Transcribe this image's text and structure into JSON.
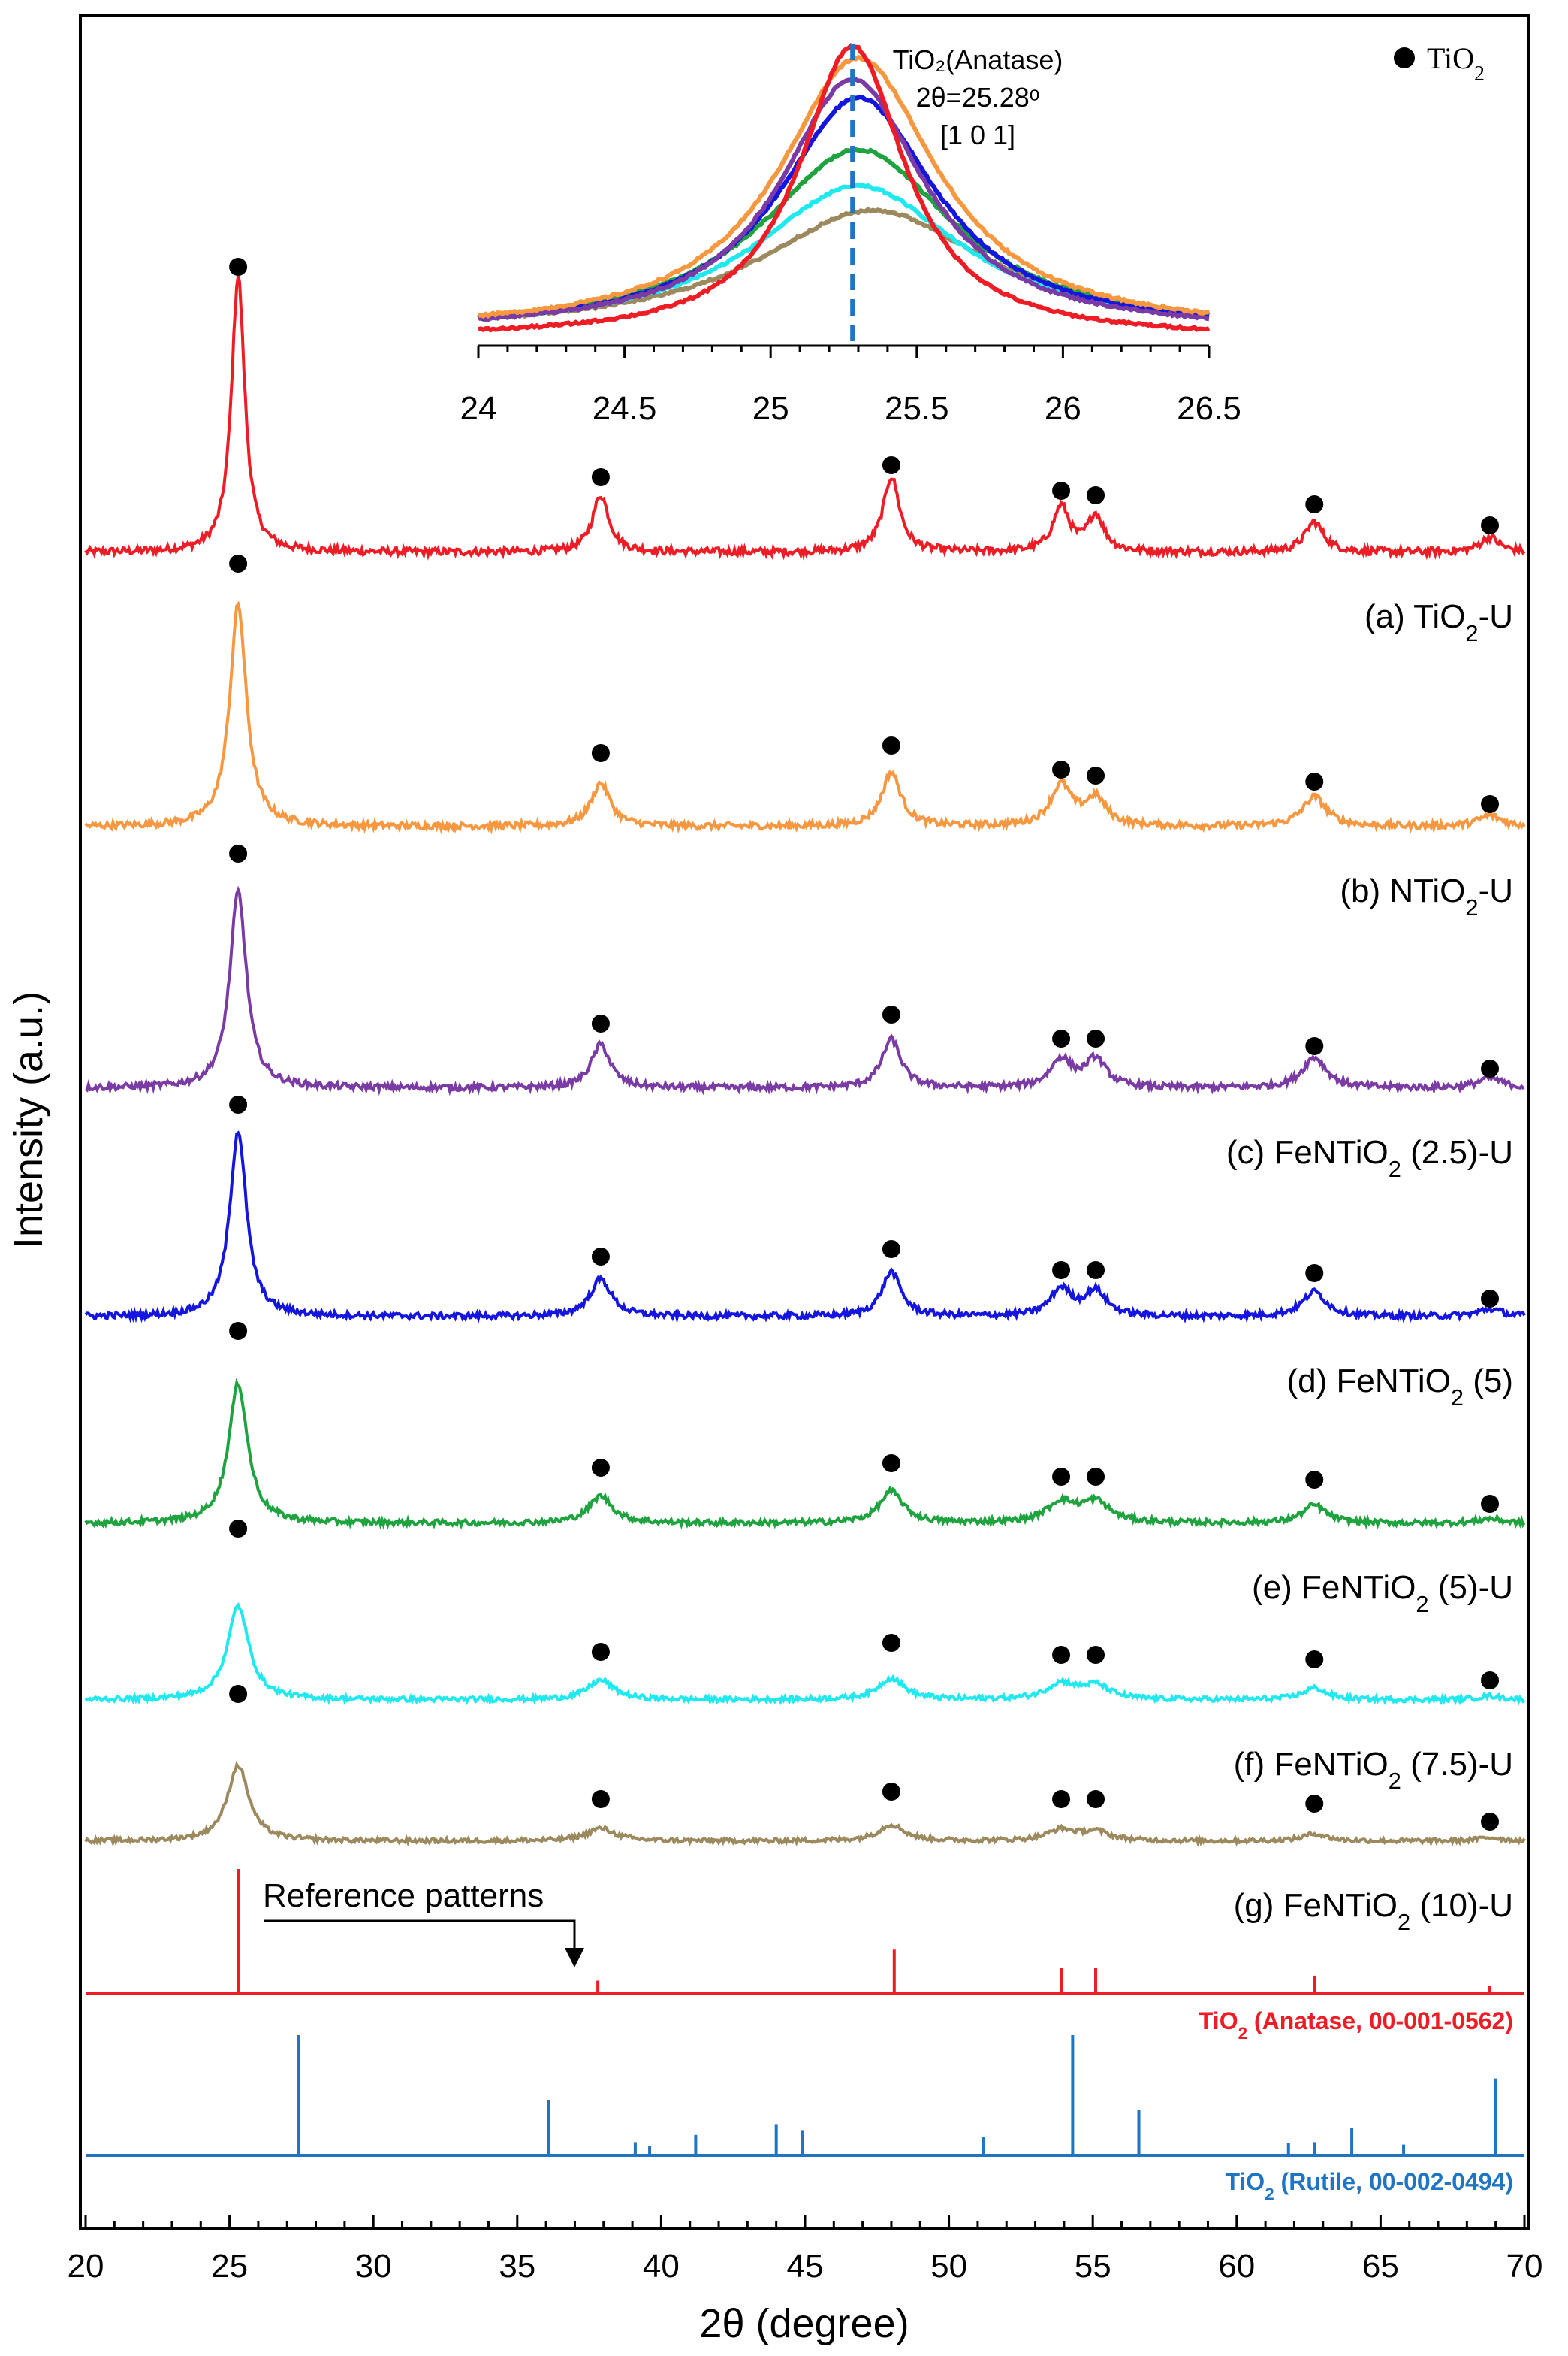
{
  "chart_data": {
    "type": "line",
    "title": "",
    "xlabel": "2θ (degree)",
    "ylabel": "Intensity (a.u.)",
    "xlim": [
      20,
      70
    ],
    "x_ticks": [
      20,
      25,
      30,
      35,
      40,
      45,
      50,
      55,
      60,
      65,
      70
    ],
    "y_ticks": "none",
    "grid": false,
    "legend": {
      "position": "top-right",
      "marker": "●",
      "label": "TiO",
      "sub": "2"
    },
    "peak_positions": [
      25.3,
      37.9,
      48.0,
      53.9,
      55.1,
      62.7,
      68.8
    ],
    "series": [
      {
        "name": "(a) TiO2-U",
        "label_parts": [
          "(a) TiO",
          "2",
          "-U"
        ],
        "color": "#ee1c25",
        "peak_heights": [
          0.92,
          0.19,
          0.25,
          0.15,
          0.12,
          0.1,
          0.05
        ],
        "peak_widths": [
          0.28,
          0.35,
          0.35,
          0.35,
          0.35,
          0.4,
          0.4
        ]
      },
      {
        "name": "(b) NTiO2-U",
        "label_parts": [
          "(b) NTiO",
          "2",
          "-U"
        ],
        "color": "#f7973f",
        "peak_heights": [
          0.82,
          0.16,
          0.2,
          0.15,
          0.1,
          0.11,
          0.04
        ],
        "peak_widths": [
          0.35,
          0.4,
          0.4,
          0.45,
          0.45,
          0.5,
          0.5
        ]
      },
      {
        "name": "(c) FeNTiO2 (2.5)-U",
        "label_parts": [
          "(c) FeNTiO",
          "2",
          " (2.5)-U"
        ],
        "color": "#7b3ba5",
        "peak_heights": [
          0.77,
          0.17,
          0.19,
          0.11,
          0.11,
          0.12,
          0.04
        ],
        "peak_widths": [
          0.35,
          0.4,
          0.4,
          0.45,
          0.45,
          0.5,
          0.5
        ]
      },
      {
        "name": "(d) FeNTiO2 (5)",
        "label_parts": [
          "(d) FeNTiO",
          "2",
          " (5)"
        ],
        "color": "#1515e0",
        "peak_heights": [
          0.75,
          0.15,
          0.18,
          0.11,
          0.1,
          0.1,
          0.03
        ],
        "peak_widths": [
          0.35,
          0.45,
          0.4,
          0.45,
          0.45,
          0.5,
          0.5
        ]
      },
      {
        "name": "(e) FeNTiO2 (5)-U",
        "label_parts": [
          "(e) FeNTiO",
          "2",
          " (5)-U"
        ],
        "color": "#1fa33e",
        "peak_heights": [
          0.62,
          0.12,
          0.14,
          0.09,
          0.09,
          0.08,
          0.02
        ],
        "peak_widths": [
          0.4,
          0.5,
          0.5,
          0.6,
          0.6,
          0.5,
          0.5
        ]
      },
      {
        "name": "(f) FeNTiO2 (7.5)-U",
        "label_parts": [
          "(f) FeNTiO",
          "2",
          " (7.5)-U"
        ],
        "color": "#1fe8ef",
        "peak_heights": [
          0.48,
          0.1,
          0.11,
          0.08,
          0.07,
          0.06,
          0.02
        ],
        "peak_widths": [
          0.45,
          0.55,
          0.55,
          0.6,
          0.6,
          0.5,
          0.5
        ]
      },
      {
        "name": "(g) FeNTiO2 (10)-U",
        "label_parts": [
          "(g) FeNTiO",
          "2",
          " (10)-U"
        ],
        "color": "#9c8a5e",
        "peak_heights": [
          0.42,
          0.07,
          0.09,
          0.06,
          0.05,
          0.04,
          0.02
        ],
        "peak_widths": [
          0.45,
          0.6,
          0.55,
          0.6,
          0.6,
          0.5,
          0.5
        ]
      }
    ],
    "reference_patterns": {
      "annotation": "Reference patterns",
      "anatase": {
        "label_parts": [
          "TiO",
          "2",
          " (Anatase, 00-001-0562)"
        ],
        "color": "#ee1c25",
        "x": [
          25.3,
          37.8,
          48.1,
          53.9,
          55.1,
          62.7,
          68.8
        ],
        "rel_intensity": [
          100,
          10,
          35,
          20,
          20,
          14,
          6
        ]
      },
      "rutile": {
        "label_parts": [
          "TiO",
          "2",
          " (Rutile, 00-002-0494)"
        ],
        "color": "#1f74c3",
        "x": [
          27.4,
          36.1,
          39.1,
          41.2,
          44.0,
          54.3,
          56.6,
          62.7,
          64.0,
          69.0,
          44.9,
          51.2,
          61.8,
          39.6,
          65.8
        ],
        "rel_intensity": [
          100,
          46,
          11,
          17,
          26,
          100,
          38,
          11,
          23,
          64,
          21,
          15,
          10,
          8,
          9
        ]
      }
    },
    "inset": {
      "xlim": [
        24,
        26.5
      ],
      "x_ticks": [
        24,
        24.5,
        25,
        25.5,
        26,
        26.5
      ],
      "annotation_lines": [
        "TiO₂(Anatase)",
        "2θ=25.28ᵒ",
        "[1 0 1]"
      ],
      "reference_line_x": 25.28,
      "curves": [
        {
          "color": "#9c8a5e",
          "center": 25.35,
          "height": 0.4,
          "width": 0.48,
          "base": 0.02
        },
        {
          "color": "#1fe8ef",
          "center": 25.3,
          "height": 0.48,
          "width": 0.43,
          "base": 0.02
        },
        {
          "color": "#1fa33e",
          "center": 25.3,
          "height": 0.6,
          "width": 0.4,
          "base": 0.02
        },
        {
          "color": "#1515e0",
          "center": 25.3,
          "height": 0.77,
          "width": 0.33,
          "base": 0.02
        },
        {
          "color": "#7b3ba5",
          "center": 25.28,
          "height": 0.83,
          "width": 0.3,
          "base": 0.02
        },
        {
          "color": "#f7973f",
          "center": 25.3,
          "height": 0.9,
          "width": 0.33,
          "base": 0.02
        },
        {
          "color": "#ee1c25",
          "center": 25.28,
          "height": 0.96,
          "width": 0.22,
          "base": 0.0
        }
      ]
    }
  }
}
